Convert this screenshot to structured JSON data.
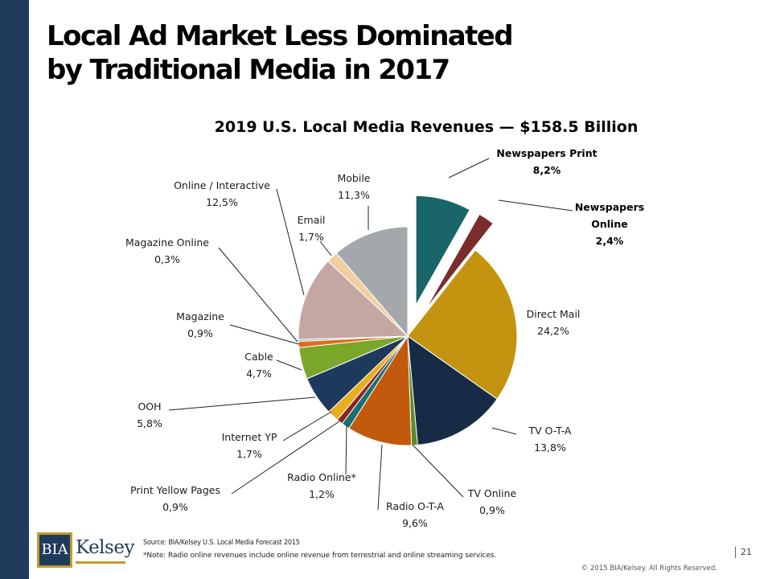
{
  "slide": {
    "title_line1": "Local Ad Market Less Dominated",
    "title_line2": "by Traditional Media in 2017",
    "source": "Source: BIA/Kelsey U.S. Local Media Forecast 2015",
    "note": "*Note: Radio online revenues include online revenue from terrestrial and online streaming services.",
    "copyright": "© 2015 BIA/Kelsey. All Rights Reserved.",
    "page_number": "21",
    "logo_text_1": "BIA",
    "logo_text_2": "Kelsey"
  },
  "chart_data": {
    "type": "pie",
    "title": "2019 U.S. Local Media Revenues — $158.5 Billion",
    "slices": [
      {
        "name": "Newspapers Print",
        "value": 8.2,
        "label": "8,2%",
        "color": "#19656a",
        "exploded": true,
        "bold": true
      },
      {
        "name": "Newspapers Online",
        "value": 2.4,
        "label": "2,4%",
        "color": "#7b2c2c",
        "exploded": true,
        "bold": true
      },
      {
        "name": "Direct Mail",
        "value": 24.2,
        "label": "24,2%",
        "color": "#c4930f"
      },
      {
        "name": "TV O-T-A",
        "value": 13.8,
        "label": "13,8%",
        "color": "#172b46"
      },
      {
        "name": "TV Online",
        "value": 0.9,
        "label": "0,9%",
        "color": "#5a8a2a"
      },
      {
        "name": "Radio O-T-A",
        "value": 9.6,
        "label": "9,6%",
        "color": "#c25a0e"
      },
      {
        "name": "Radio Online*",
        "value": 1.2,
        "label": "1,2%",
        "color": "#1a7070"
      },
      {
        "name": "Print Yellow Pages",
        "value": 0.9,
        "label": "0,9%",
        "color": "#8b2424"
      },
      {
        "name": "Internet YP",
        "value": 1.7,
        "label": "1,7%",
        "color": "#e6ae20"
      },
      {
        "name": "OOH",
        "value": 5.8,
        "label": "5,8%",
        "color": "#1d3a5c"
      },
      {
        "name": "Cable",
        "value": 4.7,
        "label": "4,7%",
        "color": "#7aa62a"
      },
      {
        "name": "Magazine",
        "value": 0.9,
        "label": "0,9%",
        "color": "#e06c1a"
      },
      {
        "name": "Magazine Online",
        "value": 0.3,
        "label": "0,3%",
        "color": "#94b8d8"
      },
      {
        "name": "Online / Interactive",
        "value": 12.5,
        "label": "12,5%",
        "color": "#c4a6a2"
      },
      {
        "name": "Email",
        "value": 1.7,
        "label": "1,7%",
        "color": "#f2cfa0"
      },
      {
        "name": "Mobile",
        "value": 11.3,
        "label": "11,3%",
        "color": "#a3a8ad"
      }
    ],
    "start_angle": "12 o'clock",
    "direction": "clockwise",
    "legend": "none"
  }
}
